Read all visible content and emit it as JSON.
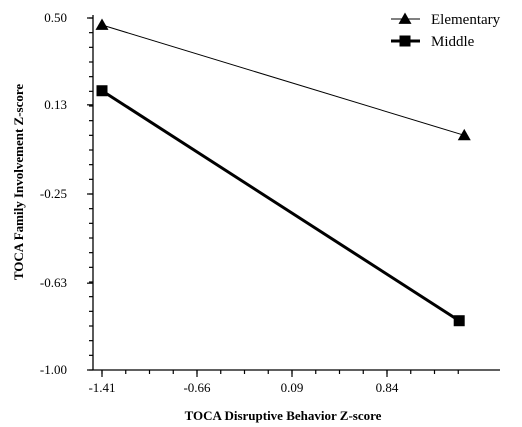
{
  "chart_data": {
    "type": "line",
    "xlabel": "TOCA Disruptive Behavior Z-score",
    "ylabel": "TOCA Family Involvement Z-score",
    "x_ticks": [
      "-1.41",
      "-0.66",
      "0.09",
      "0.84"
    ],
    "y_ticks": [
      "0.50",
      "0.13",
      "-0.25",
      "-0.63",
      "-1.00"
    ],
    "xlim": [
      -1.41,
      1.5
    ],
    "ylim": [
      -1.0,
      0.5
    ],
    "series": [
      {
        "name": "Elementary",
        "marker": "triangle",
        "color": "#000000",
        "line_weight": "thin",
        "points": [
          {
            "x": -1.41,
            "y": 0.47
          },
          {
            "x": 1.45,
            "y": 0.0
          }
        ]
      },
      {
        "name": "Middle",
        "marker": "square",
        "color": "#000000",
        "line_weight": "thick",
        "points": [
          {
            "x": -1.41,
            "y": 0.19
          },
          {
            "x": 1.41,
            "y": -0.79
          }
        ]
      }
    ],
    "legend": {
      "position": "top-right"
    },
    "grid": false
  }
}
